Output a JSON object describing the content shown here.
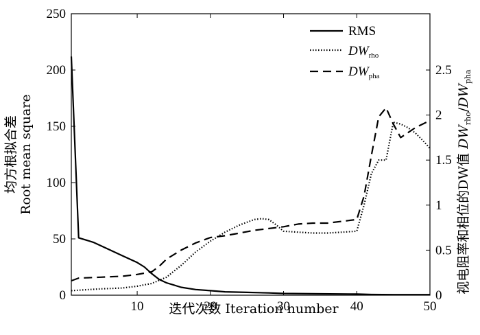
{
  "chart_data": {
    "type": "line",
    "xlabel": "迭代次数 Iteration number",
    "ylabel_left": {
      "line1": "均方根拟合差",
      "line2": "Root mean square"
    },
    "ylabel_right": {
      "prefix": "视电阻率和相位的DW值 ",
      "dw1": "DW",
      "sub1": "rho",
      "slash": "/",
      "dw2": "DW",
      "sub2": "pha"
    },
    "xlim": [
      1,
      50
    ],
    "ylim_left": [
      0,
      250
    ],
    "ylim_right": [
      0,
      3.125
    ],
    "xticks": [
      "10",
      "20",
      "30",
      "40",
      "50"
    ],
    "yticks_left": [
      "0",
      "50",
      "100",
      "150",
      "200",
      "250"
    ],
    "yticks_right": [
      "0",
      "0.5",
      "1",
      "1.5",
      "2",
      "2.5"
    ],
    "grid": false,
    "legend_position": "top-right",
    "legend": [
      {
        "main": "RMS",
        "sub": ""
      },
      {
        "main": "DW",
        "sub": "rho"
      },
      {
        "main": "DW",
        "sub": "pha"
      }
    ],
    "series": [
      {
        "name": "RMS",
        "axis": "left",
        "style": "solid",
        "x": [
          1,
          2,
          4,
          6,
          8,
          10,
          11,
          12,
          13,
          14,
          15,
          16,
          18,
          20,
          22,
          25,
          28,
          30,
          35,
          40,
          42,
          45,
          50
        ],
        "y": [
          212,
          51,
          47,
          41,
          35,
          29,
          25,
          19,
          14,
          11,
          9,
          7,
          5,
          4,
          3,
          2.5,
          2,
          1.5,
          1.2,
          1,
          0.6,
          0.5,
          0.5
        ]
      },
      {
        "name": "DW",
        "axis": "right",
        "style": "dotted",
        "x": [
          1,
          3,
          5,
          8,
          10,
          12,
          14,
          16,
          18,
          20,
          22,
          24,
          26,
          27,
          28,
          29,
          30,
          32,
          34,
          36,
          38,
          40,
          41,
          42,
          43,
          44,
          45,
          46,
          47,
          48,
          49,
          50
        ],
        "y": [
          0.05,
          0.06,
          0.07,
          0.08,
          0.1,
          0.13,
          0.2,
          0.33,
          0.48,
          0.6,
          0.7,
          0.78,
          0.84,
          0.85,
          0.84,
          0.78,
          0.71,
          0.7,
          0.69,
          0.69,
          0.7,
          0.71,
          1.0,
          1.35,
          1.5,
          1.5,
          1.92,
          1.9,
          1.86,
          1.8,
          1.72,
          1.63
        ]
      },
      {
        "name": "DW",
        "axis": "right",
        "style": "dashed",
        "x": [
          1,
          2,
          5,
          8,
          10,
          12,
          13,
          14,
          16,
          18,
          20,
          22,
          24,
          26,
          28,
          30,
          32,
          34,
          36,
          38,
          40,
          41,
          42,
          43,
          44,
          45,
          46,
          48,
          50
        ],
        "y": [
          0.16,
          0.19,
          0.2,
          0.21,
          0.23,
          0.26,
          0.32,
          0.4,
          0.5,
          0.58,
          0.64,
          0.66,
          0.69,
          0.72,
          0.74,
          0.76,
          0.79,
          0.8,
          0.8,
          0.82,
          0.84,
          1.1,
          1.55,
          1.98,
          2.08,
          1.9,
          1.75,
          1.86,
          1.94
        ]
      }
    ]
  }
}
